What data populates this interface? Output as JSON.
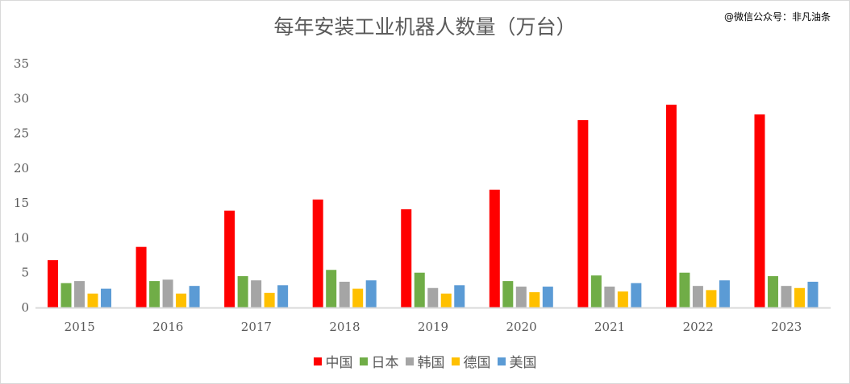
{
  "watermark": "@微信公众号：非凡油条",
  "chart_data": {
    "type": "bar",
    "title": "每年安装工业机器人数量（万台）",
    "xlabel": "",
    "ylabel": "",
    "ylim": [
      0,
      35
    ],
    "yticks": [
      0,
      5,
      10,
      15,
      20,
      25,
      30,
      35
    ],
    "grid": false,
    "legend_position": "bottom",
    "categories": [
      "2015",
      "2016",
      "2017",
      "2018",
      "2019",
      "2020",
      "2021",
      "2022",
      "2023"
    ],
    "series": [
      {
        "name": "中国",
        "color": "#ff0000",
        "values": [
          6.8,
          8.7,
          13.9,
          15.5,
          14.1,
          16.9,
          26.9,
          29.1,
          27.7
        ]
      },
      {
        "name": "日本",
        "color": "#70ad47",
        "values": [
          3.5,
          3.8,
          4.5,
          5.4,
          5.0,
          3.8,
          4.6,
          5.0,
          4.5
        ]
      },
      {
        "name": "韩国",
        "color": "#a5a5a5",
        "values": [
          3.8,
          4.0,
          3.9,
          3.7,
          2.8,
          3.0,
          3.0,
          3.1,
          3.1
        ]
      },
      {
        "name": "德国",
        "color": "#ffc000",
        "values": [
          2.0,
          2.0,
          2.1,
          2.7,
          2.0,
          2.2,
          2.3,
          2.5,
          2.8
        ]
      },
      {
        "name": "美国",
        "color": "#5b9bd5",
        "values": [
          2.7,
          3.1,
          3.2,
          3.9,
          3.2,
          3.0,
          3.5,
          3.9,
          3.7
        ]
      }
    ]
  }
}
